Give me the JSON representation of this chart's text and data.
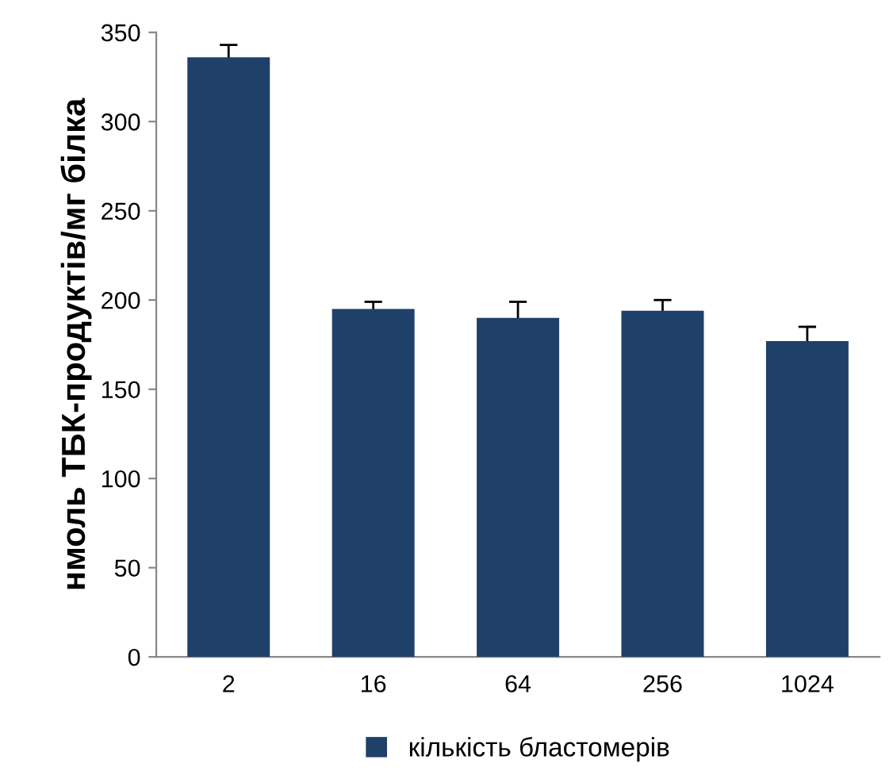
{
  "chart_data": {
    "type": "bar",
    "ylabel": "нмоль ТБК-продуктів/мг білка",
    "categories": [
      "2",
      "16",
      "64",
      "256",
      "1024"
    ],
    "series": [
      {
        "name": "кількість бластомерів",
        "color": "#1f4068",
        "values": [
          336,
          195,
          190,
          194,
          177
        ],
        "errors": [
          7,
          4,
          9,
          6,
          8
        ]
      }
    ],
    "ylim": [
      0,
      350
    ],
    "yticks": [
      0,
      50,
      100,
      150,
      200,
      250,
      300,
      350
    ],
    "grid": false,
    "legend": "bottom"
  }
}
